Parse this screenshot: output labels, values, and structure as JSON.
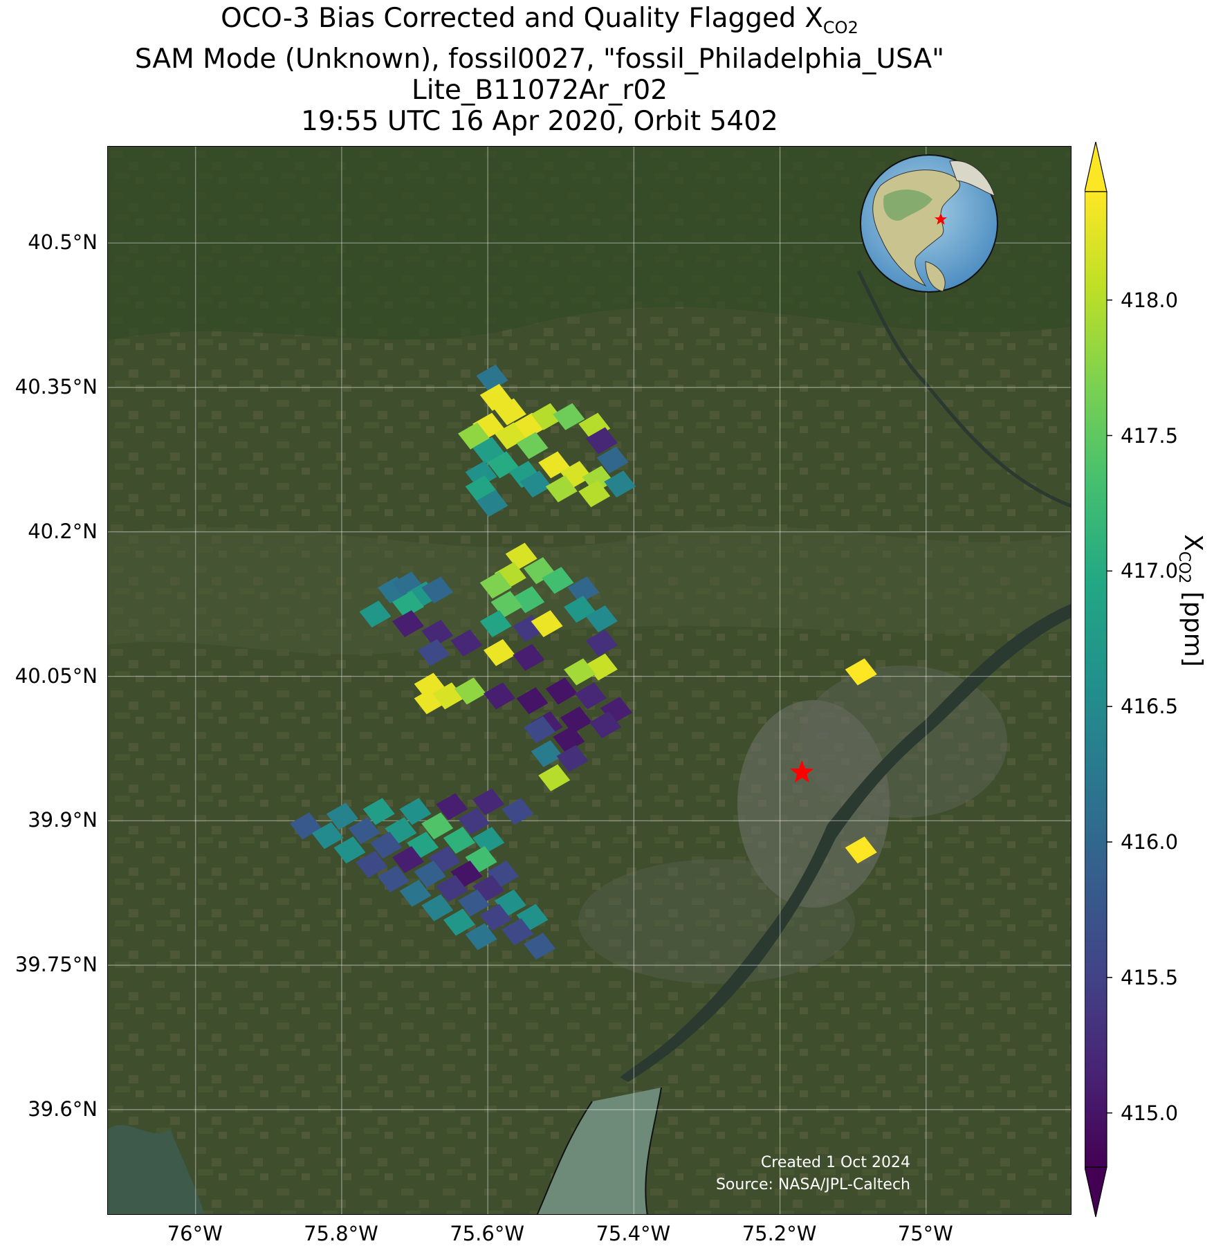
{
  "title": {
    "line1_prefix": "OCO-3 Bias Corrected and Quality Flagged X",
    "line1_sub": "CO2",
    "line2": "SAM Mode (Unknown), fossil0027, \"fossil_Philadelphia_USA\"",
    "line3": "Lite_B11072Ar_r02",
    "line4": "19:55 UTC 16 Apr 2020, Orbit 5402"
  },
  "map": {
    "lon_range": [
      -76.12,
      -74.8
    ],
    "lat_range": [
      39.49,
      40.6
    ],
    "gridlines": true,
    "basemap": "satellite imagery",
    "lat_ticks": [
      "40.5°N",
      "40.35°N",
      "40.2°N",
      "40.05°N",
      "39.9°N",
      "39.75°N",
      "39.6°N"
    ],
    "lat_tick_values": [
      40.5,
      40.35,
      40.2,
      40.05,
      39.9,
      39.75,
      39.6
    ],
    "lon_ticks": [
      "76°W",
      "75.8°W",
      "75.6°W",
      "75.4°W",
      "75.2°W",
      "75°W"
    ],
    "lon_tick_values": [
      -76.0,
      -75.8,
      -75.6,
      -75.4,
      -75.2,
      -75.0
    ],
    "target_marker": {
      "icon": "red-star-icon",
      "lon": -75.17,
      "lat": 39.95,
      "color": "#ff0000"
    },
    "inset_globe": {
      "icon": "globe-inset-icon",
      "marker_color": "#ff0000"
    },
    "credit_line1": "Created 1 Oct 2024",
    "credit_line2": "Source: NASA/JPL-Caltech"
  },
  "colorbar": {
    "label_prefix": "X",
    "label_sub": "CO2",
    "label_suffix": " [ppm]",
    "colormap": "viridis",
    "vmin": 414.8,
    "vmax": 418.4,
    "extend": "both",
    "tick_values": [
      415.0,
      415.5,
      416.0,
      416.5,
      417.0,
      417.5,
      418.0
    ],
    "tick_labels": [
      "415.0",
      "415.5",
      "416.0",
      "416.5",
      "417.0",
      "417.5",
      "418.0"
    ]
  },
  "chart_data": {
    "type": "heatmap",
    "title": "OCO-3 Bias Corrected and Quality Flagged XCO2",
    "xlabel": "",
    "ylabel": "",
    "value_label": "XCO2 [ppm]",
    "soundings": [
      {
        "lon": -75.595,
        "lat": 40.36,
        "v": 416.2
      },
      {
        "lon": -75.59,
        "lat": 40.34,
        "v": 418.3
      },
      {
        "lon": -75.57,
        "lat": 40.325,
        "v": 418.3
      },
      {
        "lon": -75.545,
        "lat": 40.31,
        "v": 418.3
      },
      {
        "lon": -75.6,
        "lat": 40.31,
        "v": 418.3
      },
      {
        "lon": -75.62,
        "lat": 40.3,
        "v": 417.8
      },
      {
        "lon": -75.57,
        "lat": 40.3,
        "v": 418.2
      },
      {
        "lon": -75.52,
        "lat": 40.32,
        "v": 418.0
      },
      {
        "lon": -75.49,
        "lat": 40.32,
        "v": 417.6
      },
      {
        "lon": -75.455,
        "lat": 40.31,
        "v": 418.0
      },
      {
        "lon": -75.445,
        "lat": 40.295,
        "v": 415.2
      },
      {
        "lon": -75.54,
        "lat": 40.29,
        "v": 417.6
      },
      {
        "lon": -75.6,
        "lat": 40.285,
        "v": 416.8
      },
      {
        "lon": -75.58,
        "lat": 40.27,
        "v": 417.0
      },
      {
        "lon": -75.51,
        "lat": 40.27,
        "v": 418.3
      },
      {
        "lon": -75.43,
        "lat": 40.275,
        "v": 416.0
      },
      {
        "lon": -75.61,
        "lat": 40.26,
        "v": 416.6
      },
      {
        "lon": -75.55,
        "lat": 40.26,
        "v": 416.8
      },
      {
        "lon": -75.48,
        "lat": 40.26,
        "v": 418.2
      },
      {
        "lon": -75.45,
        "lat": 40.255,
        "v": 417.9
      },
      {
        "lon": -75.535,
        "lat": 40.25,
        "v": 416.5
      },
      {
        "lon": -75.61,
        "lat": 40.245,
        "v": 416.9
      },
      {
        "lon": -75.5,
        "lat": 40.245,
        "v": 417.9
      },
      {
        "lon": -75.42,
        "lat": 40.25,
        "v": 416.4
      },
      {
        "lon": -75.455,
        "lat": 40.24,
        "v": 418.0
      },
      {
        "lon": -75.595,
        "lat": 40.23,
        "v": 416.4
      },
      {
        "lon": -75.555,
        "lat": 40.175,
        "v": 418.2
      },
      {
        "lon": -75.53,
        "lat": 40.16,
        "v": 417.6
      },
      {
        "lon": -75.57,
        "lat": 40.155,
        "v": 418.0
      },
      {
        "lon": -75.505,
        "lat": 40.15,
        "v": 417.3
      },
      {
        "lon": -75.59,
        "lat": 40.145,
        "v": 417.7
      },
      {
        "lon": -75.545,
        "lat": 40.13,
        "v": 417.3
      },
      {
        "lon": -75.575,
        "lat": 40.125,
        "v": 417.5
      },
      {
        "lon": -75.59,
        "lat": 40.105,
        "v": 416.9
      },
      {
        "lon": -75.545,
        "lat": 40.1,
        "v": 415.4
      },
      {
        "lon": -75.52,
        "lat": 40.105,
        "v": 418.3
      },
      {
        "lon": -75.47,
        "lat": 40.14,
        "v": 416.0
      },
      {
        "lon": -75.475,
        "lat": 40.12,
        "v": 416.7
      },
      {
        "lon": -75.445,
        "lat": 40.11,
        "v": 416.5
      },
      {
        "lon": -75.445,
        "lat": 40.085,
        "v": 415.3
      },
      {
        "lon": -75.445,
        "lat": 40.06,
        "v": 418.1
      },
      {
        "lon": -75.475,
        "lat": 40.055,
        "v": 417.9
      },
      {
        "lon": -75.585,
        "lat": 40.075,
        "v": 418.3
      },
      {
        "lon": -75.545,
        "lat": 40.07,
        "v": 415.1
      },
      {
        "lon": -75.73,
        "lat": 40.14,
        "v": 416.2
      },
      {
        "lon": -75.71,
        "lat": 40.145,
        "v": 416.1
      },
      {
        "lon": -75.69,
        "lat": 40.135,
        "v": 416.7
      },
      {
        "lon": -75.67,
        "lat": 40.14,
        "v": 416.0
      },
      {
        "lon": -75.71,
        "lat": 40.125,
        "v": 417.0
      },
      {
        "lon": -75.755,
        "lat": 40.115,
        "v": 416.7
      },
      {
        "lon": -75.71,
        "lat": 40.105,
        "v": 415.1
      },
      {
        "lon": -75.67,
        "lat": 40.095,
        "v": 415.2
      },
      {
        "lon": -75.63,
        "lat": 40.085,
        "v": 415.2
      },
      {
        "lon": -75.675,
        "lat": 40.075,
        "v": 415.6
      },
      {
        "lon": -75.68,
        "lat": 40.04,
        "v": 418.3
      },
      {
        "lon": -75.68,
        "lat": 40.025,
        "v": 418.3
      },
      {
        "lon": -75.655,
        "lat": 40.03,
        "v": 418.2
      },
      {
        "lon": -75.625,
        "lat": 40.035,
        "v": 417.8
      },
      {
        "lon": -75.585,
        "lat": 40.03,
        "v": 415.1
      },
      {
        "lon": -75.54,
        "lat": 40.025,
        "v": 415.0
      },
      {
        "lon": -75.5,
        "lat": 40.035,
        "v": 415.0
      },
      {
        "lon": -75.46,
        "lat": 40.03,
        "v": 415.2
      },
      {
        "lon": -75.425,
        "lat": 40.015,
        "v": 415.1
      },
      {
        "lon": -75.52,
        "lat": 40.0,
        "v": 415.1
      },
      {
        "lon": -75.48,
        "lat": 40.005,
        "v": 415.0
      },
      {
        "lon": -75.44,
        "lat": 40.0,
        "v": 415.2
      },
      {
        "lon": -75.53,
        "lat": 39.995,
        "v": 415.6
      },
      {
        "lon": -75.49,
        "lat": 39.985,
        "v": 415.0
      },
      {
        "lon": -75.52,
        "lat": 39.97,
        "v": 416.3
      },
      {
        "lon": -75.485,
        "lat": 39.965,
        "v": 415.3
      },
      {
        "lon": -75.51,
        "lat": 39.945,
        "v": 418.0
      },
      {
        "lon": -75.09,
        "lat": 40.055,
        "v": 418.4
      },
      {
        "lon": -75.09,
        "lat": 39.87,
        "v": 418.4
      },
      {
        "lon": -75.85,
        "lat": 39.895,
        "v": 415.8
      },
      {
        "lon": -75.8,
        "lat": 39.905,
        "v": 416.4
      },
      {
        "lon": -75.75,
        "lat": 39.91,
        "v": 416.8
      },
      {
        "lon": -75.7,
        "lat": 39.91,
        "v": 416.6
      },
      {
        "lon": -75.65,
        "lat": 39.915,
        "v": 415.1
      },
      {
        "lon": -75.6,
        "lat": 39.92,
        "v": 415.2
      },
      {
        "lon": -75.56,
        "lat": 39.91,
        "v": 415.6
      },
      {
        "lon": -75.82,
        "lat": 39.885,
        "v": 416.5
      },
      {
        "lon": -75.77,
        "lat": 39.89,
        "v": 415.8
      },
      {
        "lon": -75.72,
        "lat": 39.89,
        "v": 416.7
      },
      {
        "lon": -75.67,
        "lat": 39.895,
        "v": 417.4
      },
      {
        "lon": -75.62,
        "lat": 39.9,
        "v": 415.4
      },
      {
        "lon": -75.79,
        "lat": 39.87,
        "v": 416.6
      },
      {
        "lon": -75.74,
        "lat": 39.875,
        "v": 415.7
      },
      {
        "lon": -75.69,
        "lat": 39.875,
        "v": 416.9
      },
      {
        "lon": -75.64,
        "lat": 39.88,
        "v": 417.1
      },
      {
        "lon": -75.6,
        "lat": 39.88,
        "v": 416.7
      },
      {
        "lon": -75.76,
        "lat": 39.855,
        "v": 415.6
      },
      {
        "lon": -75.71,
        "lat": 39.86,
        "v": 415.1
      },
      {
        "lon": -75.66,
        "lat": 39.86,
        "v": 415.5
      },
      {
        "lon": -75.61,
        "lat": 39.86,
        "v": 417.3
      },
      {
        "lon": -75.73,
        "lat": 39.84,
        "v": 415.7
      },
      {
        "lon": -75.68,
        "lat": 39.845,
        "v": 415.9
      },
      {
        "lon": -75.63,
        "lat": 39.845,
        "v": 415.0
      },
      {
        "lon": -75.58,
        "lat": 39.845,
        "v": 415.6
      },
      {
        "lon": -75.7,
        "lat": 39.825,
        "v": 416.2
      },
      {
        "lon": -75.65,
        "lat": 39.83,
        "v": 415.4
      },
      {
        "lon": -75.6,
        "lat": 39.83,
        "v": 415.3
      },
      {
        "lon": -75.67,
        "lat": 39.81,
        "v": 416.4
      },
      {
        "lon": -75.62,
        "lat": 39.815,
        "v": 415.8
      },
      {
        "lon": -75.57,
        "lat": 39.815,
        "v": 416.6
      },
      {
        "lon": -75.64,
        "lat": 39.795,
        "v": 416.7
      },
      {
        "lon": -75.59,
        "lat": 39.8,
        "v": 415.5
      },
      {
        "lon": -75.54,
        "lat": 39.8,
        "v": 416.6
      },
      {
        "lon": -75.61,
        "lat": 39.78,
        "v": 416.2
      },
      {
        "lon": -75.56,
        "lat": 39.785,
        "v": 415.6
      },
      {
        "lon": -75.53,
        "lat": 39.77,
        "v": 415.8
      }
    ]
  }
}
